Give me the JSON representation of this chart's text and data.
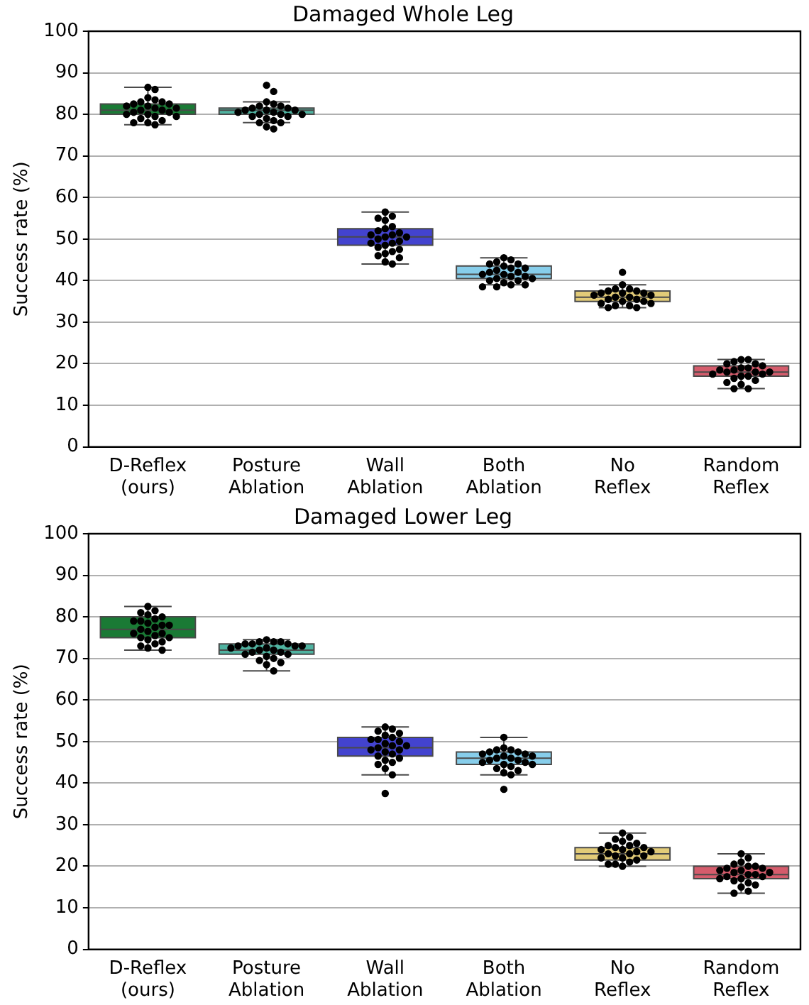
{
  "chart_data": [
    {
      "type": "box",
      "title": "Damaged Whole Leg",
      "ylabel": "Success rate (%)",
      "categories": [
        "D-Reflex\n(ours)",
        "Posture\nAblation",
        "Wall\nAblation",
        "Both\nAblation",
        "No\nReflex",
        "Random\nReflex"
      ],
      "colors": [
        "#1a7a35",
        "#4fb3a0",
        "#4343cf",
        "#87ceeb",
        "#e2cb78",
        "#d55c6c"
      ],
      "boxes": [
        {
          "low": 77.5,
          "q1": 80,
          "median": 81,
          "q3": 82.5,
          "high": 86.5
        },
        {
          "low": 78,
          "q1": 80,
          "median": 81,
          "q3": 81.5,
          "high": 83
        },
        {
          "low": 44,
          "q1": 48.5,
          "median": 50.5,
          "q3": 52.5,
          "high": 56.5
        },
        {
          "low": 39,
          "q1": 40.5,
          "median": 41.5,
          "q3": 43.5,
          "high": 45.5
        },
        {
          "low": 33.5,
          "q1": 35,
          "median": 36,
          "q3": 37.5,
          "high": 39
        },
        {
          "low": 14,
          "q1": 17,
          "median": 18,
          "q3": 19.5,
          "high": 21
        }
      ],
      "series": [
        {
          "type": "scatter",
          "color": "#000000",
          "x": [
            "D-Reflex\n(ours)",
            "D-Reflex\n(ours)",
            "D-Reflex\n(ours)",
            "D-Reflex\n(ours)",
            "D-Reflex\n(ours)",
            "D-Reflex\n(ours)",
            "D-Reflex\n(ours)",
            "D-Reflex\n(ours)",
            "D-Reflex\n(ours)",
            "D-Reflex\n(ours)",
            "D-Reflex\n(ours)",
            "D-Reflex\n(ours)",
            "D-Reflex\n(ours)",
            "D-Reflex\n(ours)",
            "D-Reflex\n(ours)",
            "D-Reflex\n(ours)",
            "D-Reflex\n(ours)",
            "D-Reflex\n(ours)",
            "D-Reflex\n(ours)",
            "D-Reflex\n(ours)",
            "D-Reflex\n(ours)",
            "D-Reflex\n(ours)",
            "D-Reflex\n(ours)",
            "D-Reflex\n(ours)",
            "D-Reflex\n(ours)"
          ],
          "values": [
            86.5,
            86,
            84,
            83.5,
            83,
            83,
            82.5,
            82.5,
            82,
            82,
            81.5,
            81.5,
            81,
            81,
            80.5,
            80.5,
            80,
            80,
            79.5,
            79.5,
            79,
            78.5,
            78,
            78,
            77.5
          ]
        },
        {
          "type": "scatter",
          "color": "#000000",
          "x": [
            "Posture\nAblation",
            "Posture\nAblation",
            "Posture\nAblation",
            "Posture\nAblation",
            "Posture\nAblation",
            "Posture\nAblation",
            "Posture\nAblation",
            "Posture\nAblation",
            "Posture\nAblation",
            "Posture\nAblation",
            "Posture\nAblation",
            "Posture\nAblation",
            "Posture\nAblation",
            "Posture\nAblation",
            "Posture\nAblation",
            "Posture\nAblation",
            "Posture\nAblation",
            "Posture\nAblation",
            "Posture\nAblation",
            "Posture\nAblation",
            "Posture\nAblation",
            "Posture\nAblation",
            "Posture\nAblation",
            "Posture\nAblation"
          ],
          "values": [
            87,
            85.5,
            83,
            82.5,
            82,
            82,
            81.5,
            81.5,
            81,
            81,
            81,
            80.5,
            80.5,
            80,
            80,
            80,
            79.5,
            79.5,
            79,
            78.5,
            78,
            78,
            77,
            76.5
          ]
        },
        {
          "type": "scatter",
          "color": "#000000",
          "x": [
            "Wall\nAblation",
            "Wall\nAblation",
            "Wall\nAblation",
            "Wall\nAblation",
            "Wall\nAblation",
            "Wall\nAblation",
            "Wall\nAblation",
            "Wall\nAblation",
            "Wall\nAblation",
            "Wall\nAblation",
            "Wall\nAblation",
            "Wall\nAblation",
            "Wall\nAblation",
            "Wall\nAblation",
            "Wall\nAblation",
            "Wall\nAblation",
            "Wall\nAblation",
            "Wall\nAblation",
            "Wall\nAblation",
            "Wall\nAblation",
            "Wall\nAblation",
            "Wall\nAblation",
            "Wall\nAblation",
            "Wall\nAblation",
            "Wall\nAblation"
          ],
          "values": [
            56.5,
            55.5,
            55,
            54.5,
            53,
            52.5,
            52,
            51.5,
            51,
            51,
            50.5,
            50.5,
            50,
            49.5,
            49,
            49,
            48.5,
            48,
            47.5,
            47,
            46.5,
            46,
            45.5,
            44.5,
            44
          ]
        },
        {
          "type": "scatter",
          "color": "#000000",
          "x": [
            "Both\nAblation",
            "Both\nAblation",
            "Both\nAblation",
            "Both\nAblation",
            "Both\nAblation",
            "Both\nAblation",
            "Both\nAblation",
            "Both\nAblation",
            "Both\nAblation",
            "Both\nAblation",
            "Both\nAblation",
            "Both\nAblation",
            "Both\nAblation",
            "Both\nAblation",
            "Both\nAblation",
            "Both\nAblation",
            "Both\nAblation",
            "Both\nAblation",
            "Both\nAblation",
            "Both\nAblation",
            "Both\nAblation",
            "Both\nAblation",
            "Both\nAblation",
            "Both\nAblation"
          ],
          "values": [
            45.5,
            45,
            44.5,
            44,
            44,
            43.5,
            43,
            43,
            42.5,
            42,
            42,
            41.5,
            41.5,
            41,
            41,
            40.5,
            40.5,
            40,
            40,
            39.5,
            39,
            39,
            38.5,
            38.5
          ]
        },
        {
          "type": "scatter",
          "color": "#000000",
          "x": [
            "No\nReflex",
            "No\nReflex",
            "No\nReflex",
            "No\nReflex",
            "No\nReflex",
            "No\nReflex",
            "No\nReflex",
            "No\nReflex",
            "No\nReflex",
            "No\nReflex",
            "No\nReflex",
            "No\nReflex",
            "No\nReflex",
            "No\nReflex",
            "No\nReflex",
            "No\nReflex",
            "No\nReflex",
            "No\nReflex",
            "No\nReflex",
            "No\nReflex",
            "No\nReflex",
            "No\nReflex",
            "No\nReflex"
          ],
          "values": [
            42,
            39,
            38,
            38,
            37.5,
            37.5,
            37,
            37,
            37,
            36.5,
            36.5,
            36,
            36,
            35.5,
            35.5,
            35,
            35,
            34.5,
            34.5,
            34,
            34,
            33.5,
            33.5
          ]
        },
        {
          "type": "scatter",
          "color": "#000000",
          "x": [
            "Random\nReflex",
            "Random\nReflex",
            "Random\nReflex",
            "Random\nReflex",
            "Random\nReflex",
            "Random\nReflex",
            "Random\nReflex",
            "Random\nReflex",
            "Random\nReflex",
            "Random\nReflex",
            "Random\nReflex",
            "Random\nReflex",
            "Random\nReflex",
            "Random\nReflex",
            "Random\nReflex",
            "Random\nReflex",
            "Random\nReflex",
            "Random\nReflex",
            "Random\nReflex",
            "Random\nReflex",
            "Random\nReflex",
            "Random\nReflex",
            "Random\nReflex"
          ],
          "values": [
            21,
            21,
            20.5,
            20,
            20,
            19.5,
            19,
            19,
            18.5,
            18.5,
            18,
            18,
            18,
            17.5,
            17.5,
            17,
            17,
            16.5,
            16,
            15.5,
            15,
            14,
            14
          ]
        }
      ],
      "ylim": [
        0,
        100
      ],
      "yticks": [
        0,
        10,
        20,
        30,
        40,
        50,
        60,
        70,
        80,
        90,
        100
      ],
      "grid": "y",
      "legend": false
    },
    {
      "type": "box",
      "title": "Damaged Lower Leg",
      "ylabel": "Success rate (%)",
      "categories": [
        "D-Reflex\n(ours)",
        "Posture\nAblation",
        "Wall\nAblation",
        "Both\nAblation",
        "No\nReflex",
        "Random\nReflex"
      ],
      "colors": [
        "#1a7a35",
        "#4fb3a0",
        "#4343cf",
        "#87ceeb",
        "#e2cb78",
        "#d55c6c"
      ],
      "boxes": [
        {
          "low": 72,
          "q1": 75,
          "median": 77,
          "q3": 80,
          "high": 82.5
        },
        {
          "low": 67,
          "q1": 71,
          "median": 72,
          "q3": 73.5,
          "high": 74.5
        },
        {
          "low": 42,
          "q1": 46.5,
          "median": 48.5,
          "q3": 51,
          "high": 53.5
        },
        {
          "low": 42,
          "q1": 44.5,
          "median": 46,
          "q3": 47.5,
          "high": 51
        },
        {
          "low": 20,
          "q1": 21.5,
          "median": 23,
          "q3": 24.5,
          "high": 28
        },
        {
          "low": 13.5,
          "q1": 17,
          "median": 18,
          "q3": 20,
          "high": 23
        }
      ],
      "series": [
        {
          "type": "scatter",
          "color": "#000000",
          "x": [
            "D-Reflex\n(ours)",
            "D-Reflex\n(ours)",
            "D-Reflex\n(ours)",
            "D-Reflex\n(ours)",
            "D-Reflex\n(ours)",
            "D-Reflex\n(ours)",
            "D-Reflex\n(ours)",
            "D-Reflex\n(ours)",
            "D-Reflex\n(ours)",
            "D-Reflex\n(ours)",
            "D-Reflex\n(ours)",
            "D-Reflex\n(ours)",
            "D-Reflex\n(ours)",
            "D-Reflex\n(ours)",
            "D-Reflex\n(ours)",
            "D-Reflex\n(ours)",
            "D-Reflex\n(ours)",
            "D-Reflex\n(ours)",
            "D-Reflex\n(ours)",
            "D-Reflex\n(ours)",
            "D-Reflex\n(ours)",
            "D-Reflex\n(ours)",
            "D-Reflex\n(ours)",
            "D-Reflex\n(ours)",
            "D-Reflex\n(ours)"
          ],
          "values": [
            82.5,
            81.5,
            81,
            80.5,
            80,
            79.5,
            79,
            79,
            78.5,
            78,
            78,
            77.5,
            77,
            76.5,
            76,
            76,
            75.5,
            75,
            75,
            74.5,
            74,
            73.5,
            73,
            72.5,
            72
          ]
        },
        {
          "type": "scatter",
          "color": "#000000",
          "x": [
            "Posture\nAblation",
            "Posture\nAblation",
            "Posture\nAblation",
            "Posture\nAblation",
            "Posture\nAblation",
            "Posture\nAblation",
            "Posture\nAblation",
            "Posture\nAblation",
            "Posture\nAblation",
            "Posture\nAblation",
            "Posture\nAblation",
            "Posture\nAblation",
            "Posture\nAblation",
            "Posture\nAblation",
            "Posture\nAblation",
            "Posture\nAblation",
            "Posture\nAblation",
            "Posture\nAblation",
            "Posture\nAblation",
            "Posture\nAblation",
            "Posture\nAblation",
            "Posture\nAblation",
            "Posture\nAblation",
            "Posture\nAblation"
          ],
          "values": [
            74.5,
            74,
            74,
            74,
            73.5,
            73.5,
            73.5,
            73,
            73,
            73,
            72.5,
            72.5,
            72,
            72,
            71.5,
            71.5,
            71,
            71,
            70.5,
            70,
            69.5,
            69,
            68.5,
            67
          ]
        },
        {
          "type": "scatter",
          "color": "#000000",
          "x": [
            "Wall\nAblation",
            "Wall\nAblation",
            "Wall\nAblation",
            "Wall\nAblation",
            "Wall\nAblation",
            "Wall\nAblation",
            "Wall\nAblation",
            "Wall\nAblation",
            "Wall\nAblation",
            "Wall\nAblation",
            "Wall\nAblation",
            "Wall\nAblation",
            "Wall\nAblation",
            "Wall\nAblation",
            "Wall\nAblation",
            "Wall\nAblation",
            "Wall\nAblation",
            "Wall\nAblation",
            "Wall\nAblation",
            "Wall\nAblation",
            "Wall\nAblation",
            "Wall\nAblation",
            "Wall\nAblation",
            "Wall\nAblation",
            "Wall\nAblation"
          ],
          "values": [
            53.5,
            53,
            52.5,
            52,
            51.5,
            51,
            50.5,
            50.5,
            50,
            49.5,
            49,
            49,
            48.5,
            48,
            48,
            47.5,
            47,
            46.5,
            46,
            45.5,
            45,
            44.5,
            43.5,
            42,
            37.5
          ]
        },
        {
          "type": "scatter",
          "color": "#000000",
          "x": [
            "Both\nAblation",
            "Both\nAblation",
            "Both\nAblation",
            "Both\nAblation",
            "Both\nAblation",
            "Both\nAblation",
            "Both\nAblation",
            "Both\nAblation",
            "Both\nAblation",
            "Both\nAblation",
            "Both\nAblation",
            "Both\nAblation",
            "Both\nAblation",
            "Both\nAblation",
            "Both\nAblation",
            "Both\nAblation",
            "Both\nAblation",
            "Both\nAblation",
            "Both\nAblation",
            "Both\nAblation",
            "Both\nAblation",
            "Both\nAblation",
            "Both\nAblation",
            "Both\nAblation"
          ],
          "values": [
            51,
            48.5,
            48,
            48,
            47.5,
            47.5,
            47,
            47,
            46.5,
            46.5,
            46,
            46,
            45.5,
            45.5,
            45,
            45,
            44.5,
            44.5,
            44,
            43.5,
            43,
            42.5,
            42,
            38.5
          ]
        },
        {
          "type": "scatter",
          "color": "#000000",
          "x": [
            "No\nReflex",
            "No\nReflex",
            "No\nReflex",
            "No\nReflex",
            "No\nReflex",
            "No\nReflex",
            "No\nReflex",
            "No\nReflex",
            "No\nReflex",
            "No\nReflex",
            "No\nReflex",
            "No\nReflex",
            "No\nReflex",
            "No\nReflex",
            "No\nReflex",
            "No\nReflex",
            "No\nReflex",
            "No\nReflex",
            "No\nReflex",
            "No\nReflex",
            "No\nReflex",
            "No\nReflex",
            "No\nReflex",
            "No\nReflex"
          ],
          "values": [
            28,
            27,
            26.5,
            26,
            25.5,
            25,
            25,
            24.5,
            24.5,
            24,
            24,
            23.5,
            23.5,
            23,
            23,
            22.5,
            22.5,
            22,
            22,
            21.5,
            21,
            20.5,
            20.5,
            20
          ]
        },
        {
          "type": "scatter",
          "color": "#000000",
          "x": [
            "Random\nReflex",
            "Random\nReflex",
            "Random\nReflex",
            "Random\nReflex",
            "Random\nReflex",
            "Random\nReflex",
            "Random\nReflex",
            "Random\nReflex",
            "Random\nReflex",
            "Random\nReflex",
            "Random\nReflex",
            "Random\nReflex",
            "Random\nReflex",
            "Random\nReflex",
            "Random\nReflex",
            "Random\nReflex",
            "Random\nReflex",
            "Random\nReflex",
            "Random\nReflex",
            "Random\nReflex",
            "Random\nReflex",
            "Random\nReflex",
            "Random\nReflex",
            "Random\nReflex"
          ],
          "values": [
            23,
            22,
            21,
            20.5,
            20,
            20,
            19.5,
            19.5,
            19,
            19,
            18.5,
            18.5,
            18,
            18,
            17.5,
            17.5,
            17,
            17,
            16.5,
            16,
            15.5,
            15,
            14,
            13.5
          ]
        }
      ],
      "ylim": [
        0,
        100
      ],
      "yticks": [
        0,
        10,
        20,
        30,
        40,
        50,
        60,
        70,
        80,
        90,
        100
      ],
      "grid": "y",
      "legend": false
    }
  ]
}
